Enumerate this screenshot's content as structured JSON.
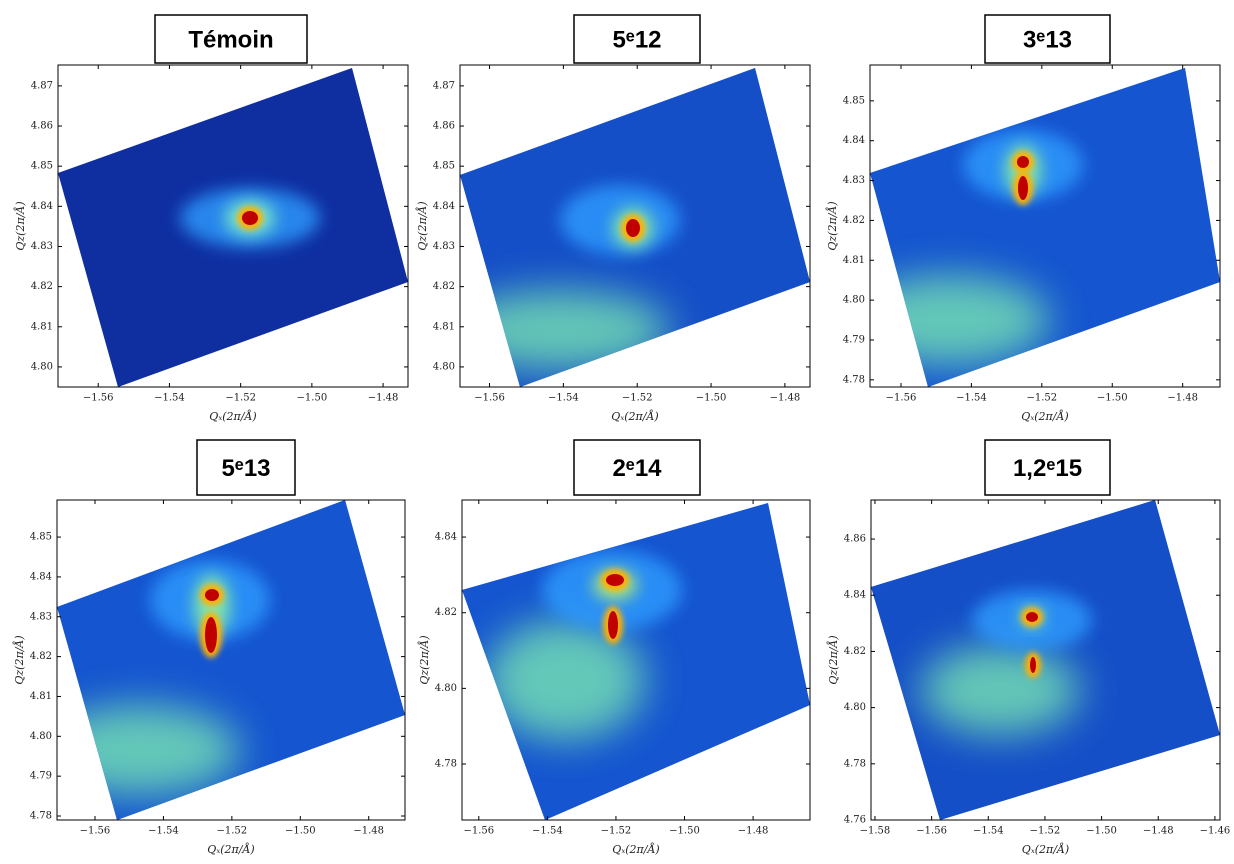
{
  "chart_data": [
    {
      "type": "heatmap",
      "title": "Témoin",
      "xlabel": "Qₓ(2π/Å)",
      "ylabel": "Qz(2π/Å)",
      "xlim": [
        -1.5713,
        -1.473
      ],
      "ylim": [
        4.795,
        4.8752
      ],
      "xticks": [
        {
          "value": -1.56,
          "label": "−1.56"
        },
        {
          "value": -1.54,
          "label": "−1.54"
        },
        {
          "value": -1.52,
          "label": "−1.52"
        },
        {
          "value": -1.5,
          "label": "−1.50"
        },
        {
          "value": -1.48,
          "label": "−1.48"
        }
      ],
      "yticks": [
        {
          "value": 4.8,
          "label": "4.80"
        },
        4.81,
        4.82,
        4.83,
        4.84,
        4.85,
        4.86,
        4.87
      ]
    },
    {
      "type": "heatmap",
      "title": "5ᵉ12",
      "xlabel": "Qₓ(2π/Å)",
      "ylabel": "Qz(2π/Å)",
      "xlim": [
        -1.568,
        -1.4732
      ],
      "ylim": [
        4.795,
        4.8752
      ],
      "xticks": [
        {
          "value": -1.56,
          "label": "−1.56"
        },
        {
          "value": -1.54,
          "label": "−1.54"
        },
        {
          "value": -1.52,
          "label": "−1.52"
        },
        {
          "value": -1.5,
          "label": "−1.50"
        },
        {
          "value": -1.48,
          "label": "−1.48"
        }
      ],
      "yticks": [
        {
          "value": 4.8,
          "label": "4.80"
        },
        4.81,
        4.82,
        4.83,
        4.84,
        4.85,
        4.86,
        4.87
      ]
    },
    {
      "type": "heatmap",
      "title": "3ᵉ13",
      "xlabel": "Qₓ(2π/Å)",
      "ylabel": "Qz(2π/Å)",
      "xlim": [
        -1.5688,
        -1.4694
      ],
      "ylim": [
        4.7782,
        4.859
      ],
      "xticks": [
        {
          "value": -1.56,
          "label": "−1.56"
        },
        {
          "value": -1.54,
          "label": "−1.54"
        },
        {
          "value": -1.52,
          "label": "−1.52"
        },
        {
          "value": -1.5,
          "label": "−1.50"
        },
        {
          "value": -1.48,
          "label": "−1.48"
        }
      ],
      "yticks": [
        4.78,
        4.79,
        {
          "value": 4.8,
          "label": "4.80"
        },
        4.81,
        4.82,
        4.83,
        4.84,
        4.85
      ]
    },
    {
      "type": "heatmap",
      "title": "5ᵉ13",
      "xlabel": "Qₓ(2π/Å)",
      "ylabel": "Qz(2π/Å)",
      "xlim": [
        -1.5711,
        -1.4694
      ],
      "ylim": [
        4.779,
        4.8593
      ],
      "xticks": [
        {
          "value": -1.56,
          "label": "−1.56"
        },
        {
          "value": -1.54,
          "label": "−1.54"
        },
        {
          "value": -1.52,
          "label": "−1.52"
        },
        {
          "value": -1.5,
          "label": "−1.50"
        },
        {
          "value": -1.48,
          "label": "−1.48"
        }
      ],
      "yticks": [
        4.78,
        4.79,
        {
          "value": 4.8,
          "label": "4.80"
        },
        4.81,
        4.82,
        4.83,
        4.84,
        4.85
      ]
    },
    {
      "type": "heatmap",
      "title": "2ᵉ14",
      "xlabel": "Qₓ(2π/Å)",
      "ylabel": "Qz(2π/Å)",
      "xlim": [
        -1.5649,
        -1.4634
      ],
      "ylim": [
        4.7652,
        4.8498
      ],
      "xticks": [
        {
          "value": -1.56,
          "label": "−1.56"
        },
        {
          "value": -1.54,
          "label": "−1.54"
        },
        {
          "value": -1.52,
          "label": "−1.52"
        },
        {
          "value": -1.5,
          "label": "−1.50"
        },
        {
          "value": -1.48,
          "label": "−1.48"
        }
      ],
      "yticks": [
        4.78,
        {
          "value": 4.8,
          "label": "4.80"
        },
        4.82,
        4.84
      ]
    },
    {
      "type": "heatmap",
      "title": "1,2ᵉ15",
      "xlabel": "Qₓ(2π/Å)",
      "ylabel": "Qz(2π/Å)",
      "xlim": [
        -1.5814,
        -1.4582
      ],
      "ylim": [
        4.76,
        4.8739
      ],
      "xticks": [
        {
          "value": -1.58,
          "label": "−1.58"
        },
        {
          "value": -1.56,
          "label": "−1.56"
        },
        {
          "value": -1.54,
          "label": "−1.54"
        },
        {
          "value": -1.52,
          "label": "−1.52"
        },
        {
          "value": -1.5,
          "label": "−1.50"
        },
        {
          "value": -1.48,
          "label": "−1.48"
        },
        {
          "value": -1.46,
          "label": "−1.46"
        }
      ],
      "yticks": [
        4.76,
        4.78,
        {
          "value": 4.8,
          "label": "4.80"
        },
        4.82,
        4.84,
        4.86
      ]
    }
  ]
}
